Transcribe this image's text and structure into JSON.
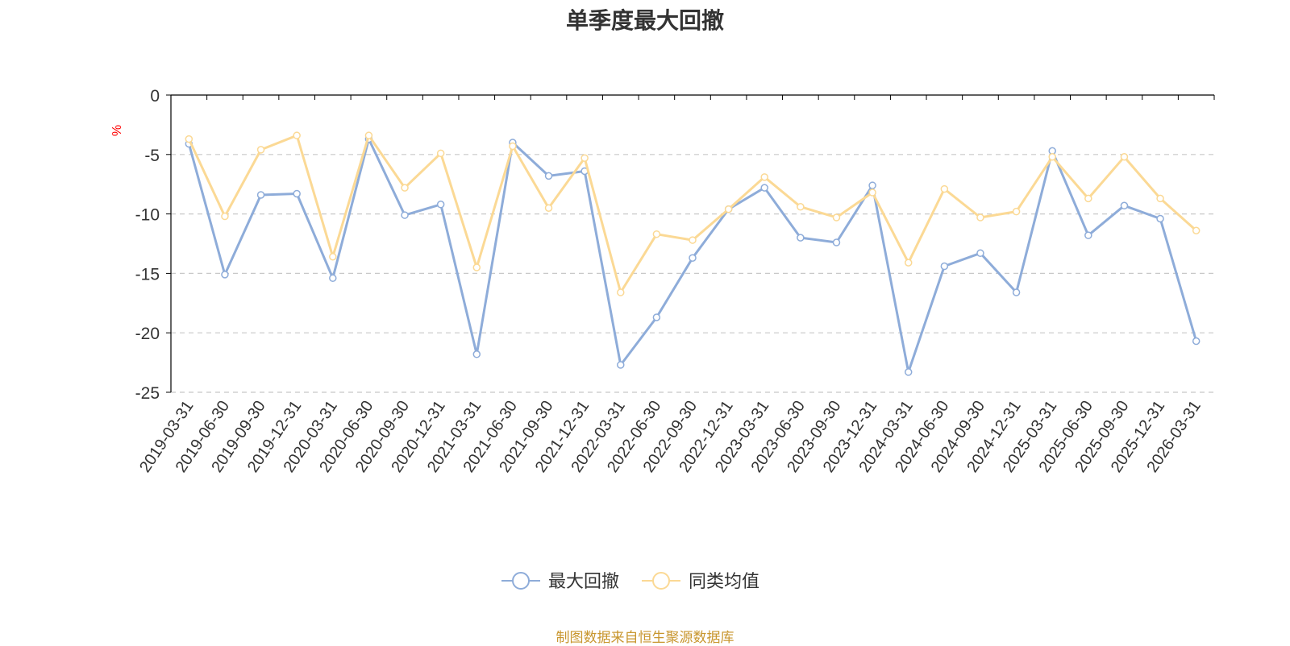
{
  "title": "单季度最大回撤",
  "source_note": "制图数据来自恒生聚源数据库",
  "colors": {
    "series1": "#8eacd9",
    "series2": "#fbd995",
    "axis": "#000000",
    "grid": "#c8c8c8",
    "unit": "#ff0000",
    "tick_text": "#333333"
  },
  "chart_data": {
    "type": "line",
    "title": "单季度最大回撤",
    "ylabel": "%",
    "xlabel": "",
    "ylim": [
      -25,
      0
    ],
    "yticks": [
      0,
      -5,
      -10,
      -15,
      -20,
      -25
    ],
    "grid": "horizontal dashed",
    "legend_position": "bottom-center",
    "x": [
      "2019-03-31",
      "2019-06-30",
      "2019-09-30",
      "2019-12-31",
      "2020-03-31",
      "2020-06-30",
      "2020-09-30",
      "2020-12-31",
      "2021-03-31",
      "2021-06-30",
      "2021-09-30",
      "2021-12-31",
      "2022-03-31",
      "2022-06-30",
      "2022-09-30",
      "2022-12-31",
      "2023-03-31",
      "2023-06-30",
      "2023-09-30",
      "2023-12-31",
      "2024-03-31",
      "2024-06-30",
      "2024-09-30",
      "2024-12-31",
      "2025-03-31",
      "2025-06-30",
      "2025-09-30",
      "2025-12-31",
      "2026-03-31"
    ],
    "series": [
      {
        "name": "最大回撤",
        "values": [
          -4.1,
          -15.1,
          -8.4,
          -8.3,
          -15.4,
          -3.7,
          -10.1,
          -9.2,
          -21.8,
          -4.0,
          -6.8,
          -6.4,
          -22.7,
          -18.7,
          -13.7,
          -9.6,
          -7.8,
          -12.0,
          -12.4,
          -7.6,
          -23.3,
          -14.4,
          -13.3,
          -16.6,
          -4.7,
          -11.8,
          -9.3,
          -10.4,
          -20.7
        ]
      },
      {
        "name": "同类均值",
        "values": [
          -3.7,
          -10.2,
          -4.6,
          -3.4,
          -13.6,
          -3.4,
          -7.8,
          -4.9,
          -14.5,
          -4.3,
          -9.5,
          -5.3,
          -16.6,
          -11.7,
          -12.2,
          -9.6,
          -6.9,
          -9.4,
          -10.3,
          -8.2,
          -14.1,
          -7.9,
          -10.3,
          -9.8,
          -5.2,
          -8.7,
          -5.2,
          -8.7,
          -11.4
        ]
      }
    ]
  }
}
